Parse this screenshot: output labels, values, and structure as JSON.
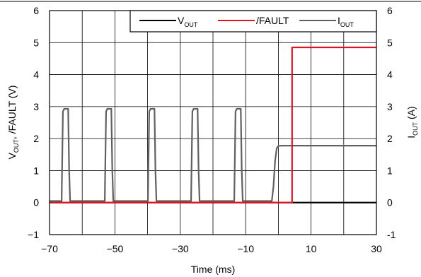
{
  "chart_data": {
    "type": "line",
    "xlabel": "Time (ms)",
    "ylabel_left": {
      "text": "V",
      "sub1": "OUT",
      "rest": ", /FAULT (V)"
    },
    "ylabel_right": {
      "text": "I",
      "sub1": "OUT",
      "rest": " (A)"
    },
    "xlim": [
      -70,
      30
    ],
    "ylim_left": [
      -1,
      6
    ],
    "ylim_right": [
      -1,
      6
    ],
    "x_ticks": [
      -70,
      -50,
      -30,
      -10,
      10,
      30
    ],
    "x_tick_labels": [
      "−70",
      "−50",
      "−30",
      "−10",
      "10",
      "30"
    ],
    "x_grid": [
      -70,
      -60,
      -50,
      -40,
      -30,
      -20,
      -10,
      0,
      10,
      20,
      30
    ],
    "y_ticks": [
      -1,
      0,
      1,
      2,
      3,
      4,
      5,
      6
    ],
    "y_left_tick_labels": [
      "−1",
      "0",
      "1",
      "2",
      "3",
      "4",
      "5",
      "6"
    ],
    "y_right_tick_labels": [
      "-1",
      "0",
      "1",
      "2",
      "3",
      "4",
      "5",
      "6"
    ],
    "grid": true,
    "legend_placement": "top-right",
    "series": [
      {
        "name": "V",
        "name_sub": "OUT",
        "color": "#000000",
        "axis": "left",
        "x": [
          -70,
          30
        ],
        "y": [
          0,
          0
        ]
      },
      {
        "name": "/FAULT",
        "name_sub": "",
        "color": "#e3121b",
        "axis": "left",
        "x": [
          -70,
          4.2,
          4.2,
          30
        ],
        "y": [
          0,
          0,
          4.85,
          4.85
        ]
      },
      {
        "name": "I",
        "name_sub": "OUT",
        "color": "#606060",
        "axis": "right",
        "x": [
          -70,
          -66.3,
          -65.9,
          -65.5,
          -64.3,
          -64.0,
          -63.7,
          -53.1,
          -52.7,
          -52.3,
          -51.1,
          -50.8,
          -50.5,
          -39.9,
          -39.5,
          -39.1,
          -37.9,
          -37.6,
          -37.3,
          -26.7,
          -26.3,
          -25.9,
          -24.7,
          -24.4,
          -24.1,
          -13.5,
          -13.1,
          -12.7,
          -11.5,
          -11.2,
          -10.9,
          -2.0,
          -1.5,
          -1.0,
          -0.5,
          0.0,
          1.0,
          30
        ],
        "y": [
          0.05,
          0.05,
          2.85,
          2.93,
          2.93,
          1.0,
          0.05,
          0.05,
          2.85,
          2.93,
          2.93,
          1.0,
          0.05,
          0.05,
          2.85,
          2.93,
          2.93,
          1.0,
          0.05,
          0.05,
          2.85,
          2.93,
          2.93,
          1.0,
          0.05,
          0.05,
          2.85,
          2.93,
          2.93,
          1.0,
          0.05,
          0.05,
          0.5,
          1.3,
          1.7,
          1.77,
          1.78,
          1.78
        ]
      }
    ]
  }
}
